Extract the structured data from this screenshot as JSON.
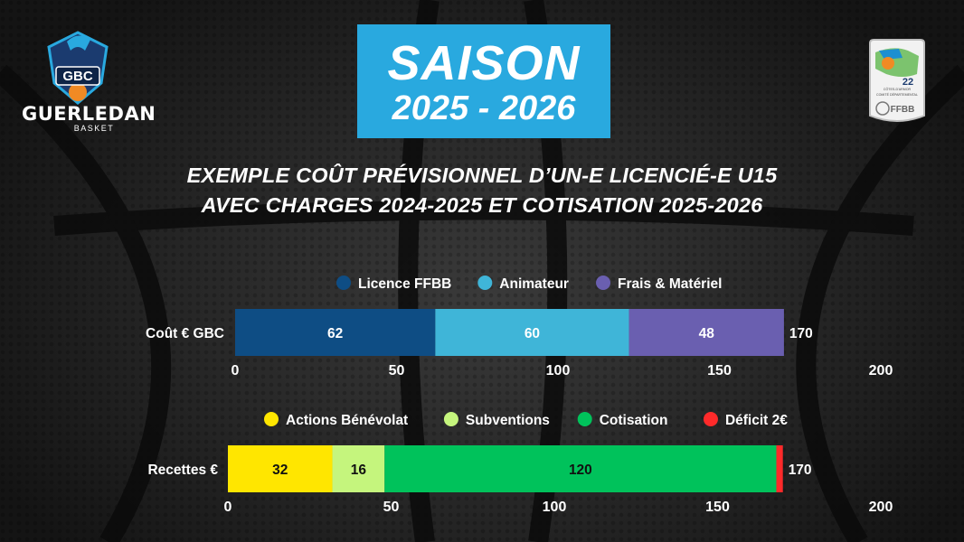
{
  "header": {
    "title_line1": "SAISON",
    "title_line2": "2025 - 2026",
    "subtitle_line1": "EXEMPLE COÛT PRÉVISIONNEL D’UN-E LICENCIÉ-E U15",
    "subtitle_line2": "AVEC CHARGES 2024-2025 ET COTISATION 2025-2026"
  },
  "club_logo": {
    "badge_text": "GBC",
    "name": "GUERLEDAN",
    "sub": "BASKET"
  },
  "ffbb_logo": {
    "number": "22",
    "region": "CÔTES-D'ARMOR",
    "committee": "COMITÉ DÉPARTEMENTAL",
    "brand": "FFBB"
  },
  "chart_data": [
    {
      "type": "bar",
      "orientation": "horizontal",
      "stacked": true,
      "categories": [
        "Coût € GBC"
      ],
      "series": [
        {
          "name": "Licence FFBB",
          "values": [
            62
          ],
          "color": "#0e4d84"
        },
        {
          "name": "Animateur",
          "values": [
            60
          ],
          "color": "#3fb5d8"
        },
        {
          "name": "Frais & Matériel",
          "values": [
            48
          ],
          "color": "#6a5fb0"
        }
      ],
      "total_label": "170",
      "xlim": [
        0,
        200
      ],
      "xticks": [
        "0",
        "50",
        "100",
        "150",
        "200"
      ],
      "legend_position": "top",
      "grid": false
    },
    {
      "type": "bar",
      "orientation": "horizontal",
      "stacked": true,
      "categories": [
        "Recettes €"
      ],
      "series": [
        {
          "name": "Actions Bénévolat",
          "values": [
            32
          ],
          "color": "#ffe600"
        },
        {
          "name": "Subventions",
          "values": [
            16
          ],
          "color": "#c5f57d"
        },
        {
          "name": "Cotisation",
          "values": [
            120
          ],
          "color": "#00c25b"
        },
        {
          "name": "Déficit 2€",
          "values": [
            2
          ],
          "color": "#ff2a2a"
        }
      ],
      "total_label": "170",
      "xlim": [
        0,
        200
      ],
      "xticks": [
        "0",
        "50",
        "100",
        "150",
        "200"
      ],
      "legend_position": "top",
      "grid": false
    }
  ]
}
